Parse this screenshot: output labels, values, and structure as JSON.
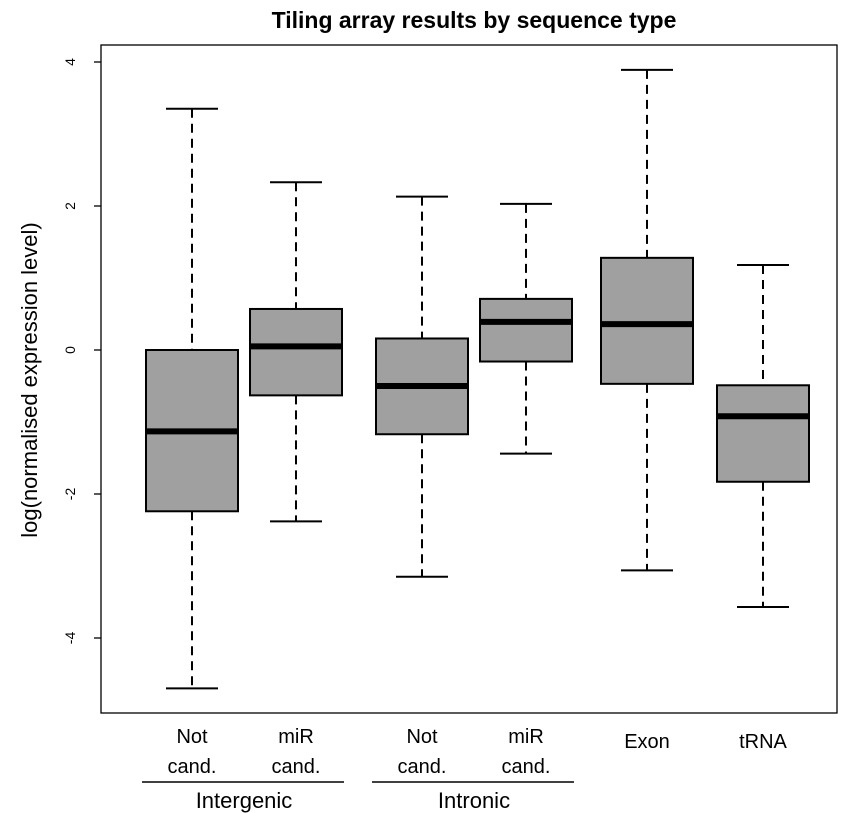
{
  "chart_data": {
    "type": "boxplot",
    "title": "Tiling array results by sequence type",
    "ylabel": "log(normalised expression level)",
    "xlabel": "",
    "ylim": [
      -5.1,
      4.3
    ],
    "yticks": [
      4,
      2,
      0,
      -2,
      -4
    ],
    "ytick_labels": [
      "4",
      "2",
      "0",
      "-2",
      "-4"
    ],
    "box_color": "#a0a0a0",
    "boxes": [
      {
        "label_lines": [
          "Not",
          "cand."
        ],
        "whisker_high": 3.35,
        "q3": 0.0,
        "median": -1.13,
        "q1": -2.24,
        "whisker_low": -4.7
      },
      {
        "label_lines": [
          "miR",
          "cand."
        ],
        "whisker_high": 2.33,
        "q3": 0.57,
        "median": 0.05,
        "q1": -0.63,
        "whisker_low": -2.38
      },
      {
        "label_lines": [
          "Not",
          "cand."
        ],
        "whisker_high": 2.13,
        "q3": 0.16,
        "median": -0.5,
        "q1": -1.17,
        "whisker_low": -3.15
      },
      {
        "label_lines": [
          "miR",
          "cand."
        ],
        "whisker_high": 2.03,
        "q3": 0.71,
        "median": 0.39,
        "q1": -0.16,
        "whisker_low": -1.44
      },
      {
        "label_lines": [
          "Exon"
        ],
        "whisker_high": 3.89,
        "q3": 1.28,
        "median": 0.36,
        "q1": -0.47,
        "whisker_low": -3.06
      },
      {
        "label_lines": [
          "tRNA"
        ],
        "whisker_high": 1.18,
        "q3": -0.49,
        "median": -0.92,
        "q1": -1.83,
        "whisker_low": -3.57
      }
    ],
    "groups": [
      {
        "label": "Intergenic",
        "boxes": [
          0,
          1
        ]
      },
      {
        "label": "Intronic",
        "boxes": [
          2,
          3
        ]
      }
    ]
  }
}
